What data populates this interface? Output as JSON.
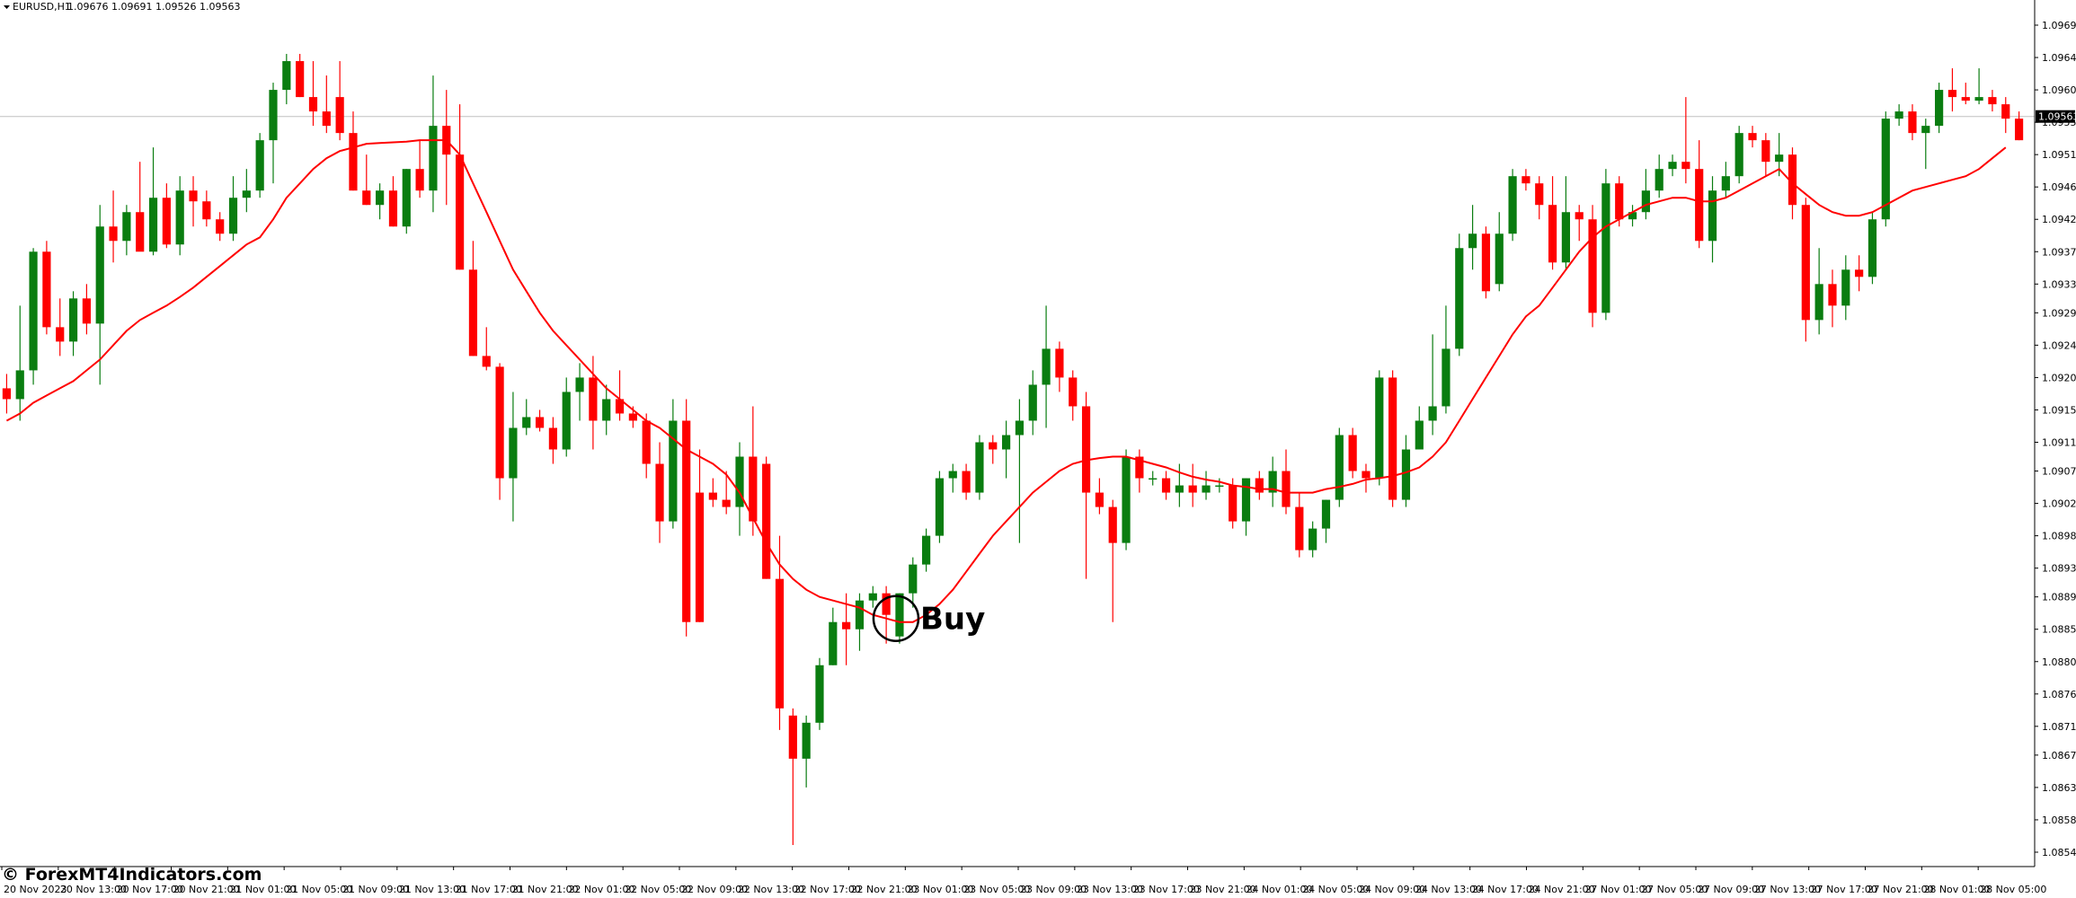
{
  "header": {
    "symbol": "EURUSD,H1",
    "ohlc": "1.09676 1.09691 1.09526 1.09563"
  },
  "current_price": "1.09563",
  "watermark": "© ForexMT4Indicators.com",
  "colors": {
    "bull": "#0a7d10",
    "bear": "#ff0000",
    "ma": "#ff0000",
    "background": "#ffffff",
    "axis": "#000000",
    "price_line": "#c0c0c0",
    "price_label_bg": "#000000"
  },
  "chart_data": {
    "type": "candlestick",
    "timeframe": "H1",
    "ylim": [
      1.0852,
      1.097
    ],
    "y_ticks": [
      "1.09690",
      "1.09645",
      "1.09600",
      "1.09555",
      "1.09510",
      "1.09465",
      "1.09420",
      "1.09375",
      "1.09330",
      "1.09290",
      "1.09245",
      "1.09200",
      "1.09155",
      "1.09110",
      "1.09070",
      "1.09025",
      "1.08980",
      "1.08935",
      "1.08895",
      "1.08850",
      "1.08805",
      "1.08760",
      "1.08715",
      "1.08675",
      "1.08630",
      "1.08585",
      "1.08540"
    ],
    "x_ticks": [
      "20 Nov 2023",
      "20 Nov 13:00",
      "20 Nov 17:00",
      "20 Nov 21:00",
      "21 Nov 01:00",
      "21 Nov 05:00",
      "21 Nov 09:00",
      "21 Nov 13:00",
      "21 Nov 17:00",
      "21 Nov 21:00",
      "22 Nov 01:00",
      "22 Nov 05:00",
      "22 Nov 09:00",
      "22 Nov 13:00",
      "22 Nov 17:00",
      "22 Nov 21:00",
      "23 Nov 01:00",
      "23 Nov 05:00",
      "23 Nov 09:00",
      "23 Nov 13:00",
      "23 Nov 17:00",
      "23 Nov 21:00",
      "24 Nov 01:00",
      "24 Nov 05:00",
      "24 Nov 09:00",
      "24 Nov 13:00",
      "24 Nov 17:00",
      "24 Nov 21:00",
      "27 Nov 01:00",
      "27 Nov 05:00",
      "27 Nov 09:00",
      "27 Nov 13:00",
      "27 Nov 17:00",
      "27 Nov 21:00",
      "28 Nov 01:00",
      "28 Nov 05:00"
    ],
    "candles": [
      [
        1.09185,
        1.09205,
        1.0915,
        1.0917
      ],
      [
        1.0917,
        1.093,
        1.0914,
        1.0921
      ],
      [
        1.0921,
        1.0938,
        1.0919,
        1.09375
      ],
      [
        1.09375,
        1.0939,
        1.0926,
        1.0927
      ],
      [
        1.0927,
        1.0931,
        1.0923,
        1.0925
      ],
      [
        1.0925,
        1.0932,
        1.0923,
        1.0931
      ],
      [
        1.0931,
        1.0933,
        1.0926,
        1.09275
      ],
      [
        1.09275,
        1.0944,
        1.0919,
        1.0941
      ],
      [
        1.0941,
        1.0946,
        1.0936,
        1.0939
      ],
      [
        1.0939,
        1.0944,
        1.0937,
        1.0943
      ],
      [
        1.0943,
        1.095,
        1.0938,
        1.09375
      ],
      [
        1.09375,
        1.0952,
        1.0937,
        1.0945
      ],
      [
        1.0945,
        1.0947,
        1.0938,
        1.09385
      ],
      [
        1.09385,
        1.0948,
        1.0937,
        1.0946
      ],
      [
        1.0946,
        1.0948,
        1.0941,
        1.09445
      ],
      [
        1.09445,
        1.0946,
        1.0941,
        1.0942
      ],
      [
        1.0942,
        1.0943,
        1.0939,
        1.094
      ],
      [
        1.094,
        1.0948,
        1.0939,
        1.0945
      ],
      [
        1.0945,
        1.0949,
        1.0943,
        1.0946
      ],
      [
        1.0946,
        1.0954,
        1.0945,
        1.0953
      ],
      [
        1.0953,
        1.0961,
        1.0947,
        1.096
      ],
      [
        1.096,
        1.0965,
        1.0958,
        1.0964
      ],
      [
        1.0964,
        1.0965,
        1.0959,
        1.0959
      ],
      [
        1.0959,
        1.0964,
        1.0955,
        1.0957
      ],
      [
        1.0957,
        1.0962,
        1.0954,
        1.0955
      ],
      [
        1.0959,
        1.0964,
        1.0953,
        1.0954
      ],
      [
        1.0954,
        1.0957,
        1.0946,
        1.0946
      ],
      [
        1.0946,
        1.0951,
        1.0944,
        1.0944
      ],
      [
        1.0944,
        1.0947,
        1.0942,
        1.0946
      ],
      [
        1.0946,
        1.0948,
        1.0941,
        1.0941
      ],
      [
        1.0941,
        1.0949,
        1.094,
        1.0949
      ],
      [
        1.0949,
        1.0953,
        1.0945,
        1.0946
      ],
      [
        1.0946,
        1.0962,
        1.0943,
        1.0955
      ],
      [
        1.0955,
        1.096,
        1.0944,
        1.0951
      ],
      [
        1.0951,
        1.0958,
        1.0935,
        1.0935
      ],
      [
        1.0935,
        1.0939,
        1.0923,
        1.0923
      ],
      [
        1.0923,
        1.0927,
        1.0921,
        1.09215
      ],
      [
        1.09215,
        1.0922,
        1.0903,
        1.0906
      ],
      [
        1.0906,
        1.0918,
        1.09,
        1.0913
      ],
      [
        1.0913,
        1.0917,
        1.0912,
        1.09145
      ],
      [
        1.09145,
        1.09155,
        1.09125,
        1.0913
      ],
      [
        1.0913,
        1.09145,
        1.0908,
        1.091
      ],
      [
        1.091,
        1.092,
        1.0909,
        1.0918
      ],
      [
        1.0918,
        1.0922,
        1.0914,
        1.092
      ],
      [
        1.092,
        1.0923,
        1.091,
        1.0914
      ],
      [
        1.0914,
        1.0919,
        1.0912,
        1.0917
      ],
      [
        1.0917,
        1.0921,
        1.0914,
        1.0915
      ],
      [
        1.0915,
        1.0916,
        1.0913,
        1.0914
      ],
      [
        1.0914,
        1.0915,
        1.0906,
        1.0908
      ],
      [
        1.0908,
        1.0911,
        1.0897,
        1.09
      ],
      [
        1.09,
        1.0917,
        1.0899,
        1.0914
      ],
      [
        1.0914,
        1.0917,
        1.0884,
        1.0886
      ],
      [
        1.0904,
        1.091,
        1.0886,
        1.0886
      ],
      [
        1.0904,
        1.0906,
        1.0902,
        1.0903
      ],
      [
        1.0903,
        1.0907,
        1.0901,
        1.0902
      ],
      [
        1.0902,
        1.0911,
        1.0898,
        1.0909
      ],
      [
        1.0909,
        1.0916,
        1.0898,
        1.09
      ],
      [
        1.0908,
        1.0909,
        1.0892,
        1.0892
      ],
      [
        1.0892,
        1.0898,
        1.0871,
        1.0874
      ],
      [
        1.0873,
        1.0874,
        1.0855,
        1.0867
      ],
      [
        1.0867,
        1.0873,
        1.0863,
        1.0872
      ],
      [
        1.0872,
        1.0881,
        1.0871,
        1.088
      ],
      [
        1.088,
        1.0888,
        1.088,
        1.0886
      ],
      [
        1.0886,
        1.089,
        1.088,
        1.0885
      ],
      [
        1.0885,
        1.089,
        1.0882,
        1.0889
      ],
      [
        1.0889,
        1.0891,
        1.0888,
        1.089
      ],
      [
        1.089,
        1.0891,
        1.0883,
        1.0887
      ],
      [
        1.0884,
        1.089,
        1.0883,
        1.089
      ],
      [
        1.089,
        1.0895,
        1.0888,
        1.0894
      ],
      [
        1.0894,
        1.0899,
        1.0893,
        1.0898
      ],
      [
        1.0898,
        1.0907,
        1.0897,
        1.0906
      ],
      [
        1.0906,
        1.0908,
        1.0904,
        1.0907
      ],
      [
        1.0907,
        1.0908,
        1.0903,
        1.0904
      ],
      [
        1.0904,
        1.0912,
        1.0903,
        1.0911
      ],
      [
        1.0911,
        1.0912,
        1.0908,
        1.091
      ],
      [
        1.091,
        1.0914,
        1.0906,
        1.0912
      ],
      [
        1.0912,
        1.0917,
        1.0897,
        1.0914
      ],
      [
        1.0914,
        1.0921,
        1.0912,
        1.0919
      ],
      [
        1.0919,
        1.093,
        1.0913,
        1.0924
      ],
      [
        1.0924,
        1.0925,
        1.0918,
        1.092
      ],
      [
        1.092,
        1.0921,
        1.0914,
        1.0916
      ],
      [
        1.0916,
        1.0918,
        1.0892,
        1.0904
      ],
      [
        1.0904,
        1.0906,
        1.0901,
        1.0902
      ],
      [
        1.0902,
        1.0903,
        1.0886,
        1.0897
      ],
      [
        1.0897,
        1.091,
        1.0896,
        1.0909
      ],
      [
        1.0909,
        1.091,
        1.0904,
        1.0906
      ],
      [
        1.0906,
        1.0907,
        1.0905,
        1.0906
      ],
      [
        1.0906,
        1.0907,
        1.0903,
        1.0904
      ],
      [
        1.0904,
        1.0908,
        1.0902,
        1.0905
      ],
      [
        1.0905,
        1.0908,
        1.0902,
        1.0904
      ],
      [
        1.0904,
        1.0907,
        1.0903,
        1.0905
      ],
      [
        1.0905,
        1.0906,
        1.0904,
        1.0905
      ],
      [
        1.0905,
        1.0906,
        1.0899,
        1.09
      ],
      [
        1.09,
        1.0906,
        1.0898,
        1.0906
      ],
      [
        1.0906,
        1.0907,
        1.0903,
        1.0904
      ],
      [
        1.0904,
        1.0909,
        1.0902,
        1.0907
      ],
      [
        1.0907,
        1.091,
        1.0901,
        1.0902
      ],
      [
        1.0902,
        1.0904,
        1.0895,
        1.0896
      ],
      [
        1.0896,
        1.09,
        1.0895,
        1.0899
      ],
      [
        1.0899,
        1.0903,
        1.0897,
        1.0903
      ],
      [
        1.0903,
        1.0913,
        1.0902,
        1.0912
      ],
      [
        1.0912,
        1.0913,
        1.0906,
        1.0907
      ],
      [
        1.0907,
        1.0908,
        1.0904,
        1.0906
      ],
      [
        1.0906,
        1.0921,
        1.0905,
        1.092
      ],
      [
        1.092,
        1.0921,
        1.0902,
        1.0903
      ],
      [
        1.0903,
        1.0912,
        1.0902,
        1.091
      ],
      [
        1.091,
        1.0916,
        1.091,
        1.0914
      ],
      [
        1.0914,
        1.0926,
        1.0912,
        1.0916
      ],
      [
        1.0916,
        1.093,
        1.0915,
        1.0924
      ],
      [
        1.0924,
        1.094,
        1.0923,
        1.0938
      ],
      [
        1.0938,
        1.0944,
        1.0935,
        1.094
      ],
      [
        1.094,
        1.0941,
        1.0931,
        1.0932
      ],
      [
        1.0933,
        1.0943,
        1.0932,
        1.094
      ],
      [
        1.094,
        1.0949,
        1.0939,
        1.0948
      ],
      [
        1.0948,
        1.0949,
        1.0946,
        1.0947
      ],
      [
        1.0947,
        1.0948,
        1.0942,
        1.0944
      ],
      [
        1.0944,
        1.0948,
        1.0935,
        1.0936
      ],
      [
        1.0936,
        1.0948,
        1.0935,
        1.0943
      ],
      [
        1.0943,
        1.0944,
        1.0939,
        1.0942
      ],
      [
        1.0942,
        1.0944,
        1.0927,
        1.0929
      ],
      [
        1.0929,
        1.0949,
        1.0928,
        1.0947
      ],
      [
        1.0947,
        1.0948,
        1.0941,
        1.0942
      ],
      [
        1.0942,
        1.0944,
        1.0941,
        1.0943
      ],
      [
        1.0943,
        1.0949,
        1.0942,
        1.0946
      ],
      [
        1.0946,
        1.0951,
        1.0945,
        1.0949
      ],
      [
        1.0949,
        1.0951,
        1.0948,
        1.095
      ],
      [
        1.095,
        1.0959,
        1.0947,
        1.0949
      ],
      [
        1.0949,
        1.0953,
        1.0938,
        1.0939
      ],
      [
        1.0939,
        1.0948,
        1.0936,
        1.0946
      ],
      [
        1.0946,
        1.095,
        1.0945,
        1.0948
      ],
      [
        1.0948,
        1.0955,
        1.0947,
        1.0954
      ],
      [
        1.0954,
        1.0955,
        1.0952,
        1.0953
      ],
      [
        1.0953,
        1.0954,
        1.0948,
        1.095
      ],
      [
        1.095,
        1.0954,
        1.0948,
        1.0951
      ],
      [
        1.0951,
        1.0952,
        1.0942,
        1.0944
      ],
      [
        1.0944,
        1.0945,
        1.0925,
        1.0928
      ],
      [
        1.0928,
        1.0938,
        1.0926,
        1.0933
      ],
      [
        1.0933,
        1.0935,
        1.0927,
        1.093
      ],
      [
        1.093,
        1.0937,
        1.0928,
        1.0935
      ],
      [
        1.0935,
        1.0937,
        1.0932,
        1.0934
      ],
      [
        1.0934,
        1.0943,
        1.0933,
        1.0942
      ],
      [
        1.0942,
        1.0957,
        1.0941,
        1.0956
      ],
      [
        1.0956,
        1.0958,
        1.0955,
        1.0957
      ],
      [
        1.0957,
        1.0958,
        1.0953,
        1.0954
      ],
      [
        1.0954,
        1.0956,
        1.0949,
        1.0955
      ],
      [
        1.0955,
        1.0961,
        1.0954,
        1.096
      ],
      [
        1.096,
        1.0963,
        1.0957,
        1.0959
      ],
      [
        1.0959,
        1.0961,
        1.0958,
        1.09585
      ],
      [
        1.09585,
        1.0963,
        1.0958,
        1.0959
      ],
      [
        1.0959,
        1.096,
        1.0957,
        1.0958
      ],
      [
        1.0958,
        1.0959,
        1.0954,
        1.0956
      ],
      [
        1.0956,
        1.0957,
        1.0953,
        1.0953
      ]
    ],
    "ma": [
      1.0914,
      1.0915,
      1.09165,
      1.09175,
      1.09185,
      1.09195,
      1.0921,
      1.09225,
      1.09245,
      1.09265,
      1.0928,
      1.0929,
      1.093,
      1.09312,
      1.09325,
      1.0934,
      1.09355,
      1.0937,
      1.09385,
      1.09395,
      1.0942,
      1.0945,
      1.0947,
      1.0949,
      1.09505,
      1.09515,
      1.0952,
      1.09525,
      1.09526,
      1.09527,
      1.09528,
      1.0953,
      1.0953,
      1.0953,
      1.0951,
      1.0947,
      1.0943,
      1.0939,
      1.0935,
      1.0932,
      1.0929,
      1.09265,
      1.09245,
      1.09225,
      1.09205,
      1.09185,
      1.0917,
      1.09155,
      1.0914,
      1.0913,
      1.09115,
      1.091,
      1.0909,
      1.0908,
      1.09065,
      1.0904,
      1.09005,
      1.0897,
      1.0894,
      1.0892,
      1.08905,
      1.08895,
      1.0889,
      1.08885,
      1.0888,
      1.0887,
      1.08865,
      1.0886,
      1.0886,
      1.0887,
      1.08885,
      1.08905,
      1.0893,
      1.08955,
      1.0898,
      1.09,
      1.0902,
      1.0904,
      1.09055,
      1.0907,
      1.0908,
      1.09085,
      1.09088,
      1.0909,
      1.0909,
      1.09085,
      1.0908,
      1.09075,
      1.09068,
      1.09062,
      1.09058,
      1.09055,
      1.0905,
      1.09048,
      1.09045,
      1.09045,
      1.0904,
      1.0904,
      1.0904,
      1.09045,
      1.09048,
      1.09052,
      1.09058,
      1.0906,
      1.09063,
      1.09068,
      1.09075,
      1.0909,
      1.0911,
      1.0914,
      1.0917,
      1.092,
      1.0923,
      1.0926,
      1.09285,
      1.093,
      1.09325,
      1.0935,
      1.09375,
      1.09395,
      1.0941,
      1.0942,
      1.0943,
      1.0944,
      1.09445,
      1.0945,
      1.0945,
      1.09445,
      1.09445,
      1.0945,
      1.0946,
      1.0947,
      1.0948,
      1.0949,
      1.0947,
      1.09455,
      1.0944,
      1.0943,
      1.09425,
      1.09425,
      1.0943,
      1.0944,
      1.0945,
      1.0946,
      1.09465,
      1.0947,
      1.09475,
      1.0948,
      1.0949,
      1.09505,
      1.0952
    ],
    "annotation": {
      "label": "Buy",
      "candle_index": 67
    }
  }
}
